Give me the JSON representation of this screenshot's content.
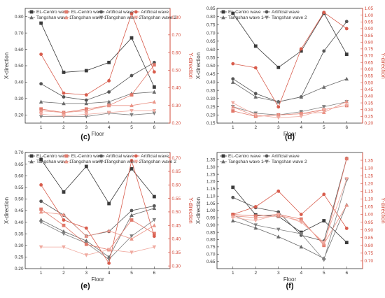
{
  "chart_data": [
    {
      "type": "line",
      "panel": "(c)",
      "x": [
        1,
        2,
        3,
        4,
        5,
        6
      ],
      "xlabel": "Floor",
      "ylabel": "X-direction",
      "y2label": "Y-direction",
      "ylim": [
        0.15,
        0.85
      ],
      "yticks": [
        0.2,
        0.3,
        0.4,
        0.5,
        0.6,
        0.7,
        0.8
      ],
      "y2lim": [
        0.2,
        0.85
      ],
      "y2ticks": [
        0.2,
        0.3,
        0.4,
        0.5,
        0.6,
        0.7,
        0.8
      ],
      "legend": [
        "EL-Centro wave",
        "EL-Centro wave",
        "Artificial wave",
        "Artificial wave",
        "Tangshan wave 1",
        "Tangshan wave 1",
        "Tangshan wave 2",
        "Tangshan wave 2"
      ],
      "series": [
        {
          "name": "EL-Centro wave",
          "axis": "left",
          "marker": "square",
          "values": [
            0.76,
            0.46,
            0.47,
            0.52,
            0.67,
            0.37
          ]
        },
        {
          "name": "Artificial wave",
          "axis": "left",
          "marker": "circle",
          "values": [
            0.39,
            0.31,
            0.29,
            0.34,
            0.44,
            0.52
          ]
        },
        {
          "name": "Tangshan wave 1",
          "axis": "left",
          "marker": "tri-up",
          "values": [
            0.28,
            0.27,
            0.27,
            0.28,
            0.33,
            0.34
          ]
        },
        {
          "name": "Tangshan wave 2",
          "axis": "left",
          "marker": "tri-down",
          "values": [
            0.19,
            0.19,
            0.19,
            0.21,
            0.2,
            0.21
          ]
        },
        {
          "name": "EL-Centro wave",
          "axis": "right",
          "marker": "square",
          "values": [
            0.28,
            0.26,
            0.28,
            0.3,
            0.36,
            0.53
          ]
        },
        {
          "name": "Artificial wave",
          "axis": "right",
          "marker": "circle",
          "values": [
            0.59,
            0.37,
            0.36,
            0.44,
            0.82,
            0.49
          ]
        },
        {
          "name": "Tangshan wave 1",
          "axis": "right",
          "marker": "tri-up",
          "values": [
            0.27,
            0.26,
            0.27,
            0.3,
            0.3,
            0.32
          ]
        },
        {
          "name": "Tangshan wave 2",
          "axis": "right",
          "marker": "tri-down",
          "values": [
            0.25,
            0.24,
            0.25,
            0.26,
            0.27,
            0.27
          ]
        }
      ]
    },
    {
      "type": "line",
      "panel": "(d)",
      "x": [
        1,
        2,
        3,
        4,
        5,
        6
      ],
      "xlabel": "Floor",
      "ylabel": "X-direction",
      "y2label": "Y-direction",
      "ylim": [
        0.15,
        0.85
      ],
      "yticks": [
        0.15,
        0.2,
        0.25,
        0.3,
        0.35,
        0.4,
        0.45,
        0.5,
        0.55,
        0.6,
        0.65,
        0.7,
        0.75,
        0.8,
        0.85
      ],
      "y2lim": [
        0.2,
        1.05
      ],
      "y2ticks": [
        0.2,
        0.25,
        0.3,
        0.35,
        0.4,
        0.45,
        0.5,
        0.55,
        0.6,
        0.65,
        0.7,
        0.75,
        0.8,
        0.85,
        0.9,
        0.95,
        1.0,
        1.05
      ],
      "legend": [
        "EL-Centro wave",
        "Artificial wave",
        "Tangshan wave 1",
        "Tangshan wave 2"
      ],
      "series": [
        {
          "name": "EL-Centro wave",
          "axis": "left",
          "marker": "square",
          "values": [
            0.82,
            0.62,
            0.49,
            0.59,
            0.82,
            0.57
          ]
        },
        {
          "name": "Artificial wave",
          "axis": "left",
          "marker": "circle",
          "values": [
            0.42,
            0.33,
            0.28,
            0.31,
            0.59,
            0.77
          ]
        },
        {
          "name": "Tangshan wave 1",
          "axis": "left",
          "marker": "tri-up",
          "values": [
            0.4,
            0.31,
            0.28,
            0.31,
            0.37,
            0.42
          ]
        },
        {
          "name": "Tangshan wave 2",
          "axis": "left",
          "marker": "tri-down",
          "values": [
            0.25,
            0.21,
            0.2,
            0.22,
            0.25,
            0.28
          ]
        },
        {
          "name": "EL-Centro wave",
          "axis": "right",
          "marker": "square",
          "values": [
            0.29,
            0.25,
            0.26,
            0.27,
            0.3,
            0.33
          ]
        },
        {
          "name": "Artificial wave",
          "axis": "right",
          "marker": "circle",
          "values": [
            0.64,
            0.61,
            0.32,
            0.75,
            1.02,
            0.9
          ]
        },
        {
          "name": "Tangshan wave 1",
          "axis": "right",
          "marker": "tri-up",
          "values": [
            0.32,
            0.25,
            0.26,
            0.27,
            0.28,
            0.36
          ]
        },
        {
          "name": "Tangshan wave 2",
          "axis": "right",
          "marker": "tri-down",
          "values": [
            0.35,
            0.26,
            0.24,
            0.25,
            0.3,
            0.33
          ]
        }
      ]
    },
    {
      "type": "line",
      "panel": "(e)",
      "x": [
        1,
        2,
        3,
        4,
        5,
        6
      ],
      "xlabel": "Floor",
      "ylabel": "X-direction",
      "y2label": "Y-direction",
      "ylim": [
        0.2,
        0.7
      ],
      "yticks": [
        0.2,
        0.25,
        0.3,
        0.35,
        0.4,
        0.45,
        0.5,
        0.55,
        0.6,
        0.65,
        0.7
      ],
      "y2lim": [
        0.29,
        0.72
      ],
      "y2ticks": [
        0.3,
        0.35,
        0.4,
        0.45,
        0.5,
        0.55,
        0.6,
        0.65,
        0.7
      ],
      "legend": [
        "EL-Centro wave",
        "EL-Centro wave",
        "Artificial wave",
        "Artificial wave",
        "Tangshan wave 1",
        "Tangshan wave 1",
        "Tangshan wave 2",
        "Tangshan wave 2"
      ],
      "series": [
        {
          "name": "EL-Centro wave",
          "axis": "left",
          "marker": "square",
          "values": [
            0.67,
            0.53,
            0.64,
            0.48,
            0.63,
            0.51
          ]
        },
        {
          "name": "Artificial wave",
          "axis": "left",
          "marker": "circle",
          "values": [
            0.49,
            0.43,
            0.34,
            0.36,
            0.45,
            0.47
          ]
        },
        {
          "name": "Tangshan wave 1",
          "axis": "left",
          "marker": "tri-up",
          "values": [
            0.41,
            0.36,
            0.32,
            0.25,
            0.43,
            0.46
          ]
        },
        {
          "name": "Tangshan wave 2",
          "axis": "left",
          "marker": "tri-down",
          "values": [
            0.4,
            0.35,
            0.31,
            0.24,
            0.34,
            0.41
          ]
        },
        {
          "name": "EL-Centro wave",
          "axis": "right",
          "marker": "square",
          "values": [
            0.51,
            0.45,
            0.38,
            0.36,
            0.47,
            0.42
          ]
        },
        {
          "name": "Artificial wave",
          "axis": "right",
          "marker": "circle",
          "values": [
            0.6,
            0.47,
            0.44,
            0.31,
            0.69,
            0.41
          ]
        },
        {
          "name": "Tangshan wave 1",
          "axis": "right",
          "marker": "tri-up",
          "values": [
            0.5,
            0.49,
            0.41,
            0.43,
            0.4,
            0.45
          ]
        },
        {
          "name": "Tangshan wave 2",
          "axis": "right",
          "marker": "tri-down",
          "values": [
            0.37,
            0.37,
            0.34,
            0.36,
            0.35,
            0.37
          ]
        }
      ]
    },
    {
      "type": "line",
      "panel": "(f)",
      "x": [
        1,
        2,
        3,
        4,
        5,
        6
      ],
      "xlabel": "Floor",
      "ylabel": "X-direction",
      "y2label": "Y-direction",
      "ylim": [
        0.6,
        1.4
      ],
      "yticks": [
        0.65,
        0.7,
        0.75,
        0.8,
        0.85,
        0.9,
        0.95,
        1.0,
        1.05,
        1.1,
        1.15,
        1.2,
        1.25,
        1.3,
        1.35
      ],
      "y2lim": [
        0.65,
        1.4
      ],
      "y2ticks": [
        0.7,
        0.75,
        0.8,
        0.85,
        0.9,
        0.95,
        1.0,
        1.05,
        1.1,
        1.15,
        1.2,
        1.25,
        1.3,
        1.35
      ],
      "legend": [
        "EL-Centro wave",
        "Artificial wave",
        "Tangshan wave 1",
        "Tangshan wave 2"
      ],
      "series": [
        {
          "name": "EL-Centro wave",
          "axis": "left",
          "marker": "square",
          "values": [
            1.16,
            0.97,
            0.96,
            0.85,
            0.93,
            0.78
          ]
        },
        {
          "name": "Artificial wave",
          "axis": "left",
          "marker": "circle",
          "values": [
            1.09,
            1.02,
            0.99,
            0.83,
            0.79,
            1.36
          ]
        },
        {
          "name": "Tangshan wave 1",
          "axis": "left",
          "marker": "tri-up",
          "values": [
            0.93,
            0.88,
            0.82,
            0.75,
            0.67,
            1.04
          ]
        },
        {
          "name": "Tangshan wave 2",
          "axis": "left",
          "marker": "tri-down",
          "values": [
            0.97,
            0.9,
            0.87,
            0.84,
            0.66,
            1.21
          ]
        },
        {
          "name": "EL-Centro wave",
          "axis": "right",
          "marker": "square",
          "values": [
            1.0,
            0.99,
            1.0,
            0.97,
            0.8,
            1.36
          ]
        },
        {
          "name": "Artificial wave",
          "axis": "right",
          "marker": "circle",
          "values": [
            1.0,
            1.05,
            1.15,
            1.0,
            1.13,
            0.91
          ]
        },
        {
          "name": "Tangshan wave 1",
          "axis": "right",
          "marker": "tri-up",
          "values": [
            0.99,
            0.98,
            0.99,
            0.96,
            0.81,
            1.06
          ]
        },
        {
          "name": "Tangshan wave 2",
          "axis": "right",
          "marker": "tri-down",
          "values": [
            0.98,
            0.96,
            1.0,
            0.95,
            0.82,
            1.23
          ]
        }
      ]
    }
  ],
  "colors": {
    "left": [
      "#3a3a3a",
      "#555555",
      "#6a6a6a",
      "#808080"
    ],
    "right": [
      "#e1796b",
      "#d85c4c",
      "#ea9487",
      "#f0aaa0"
    ],
    "axis_right": "#d34a3a"
  }
}
